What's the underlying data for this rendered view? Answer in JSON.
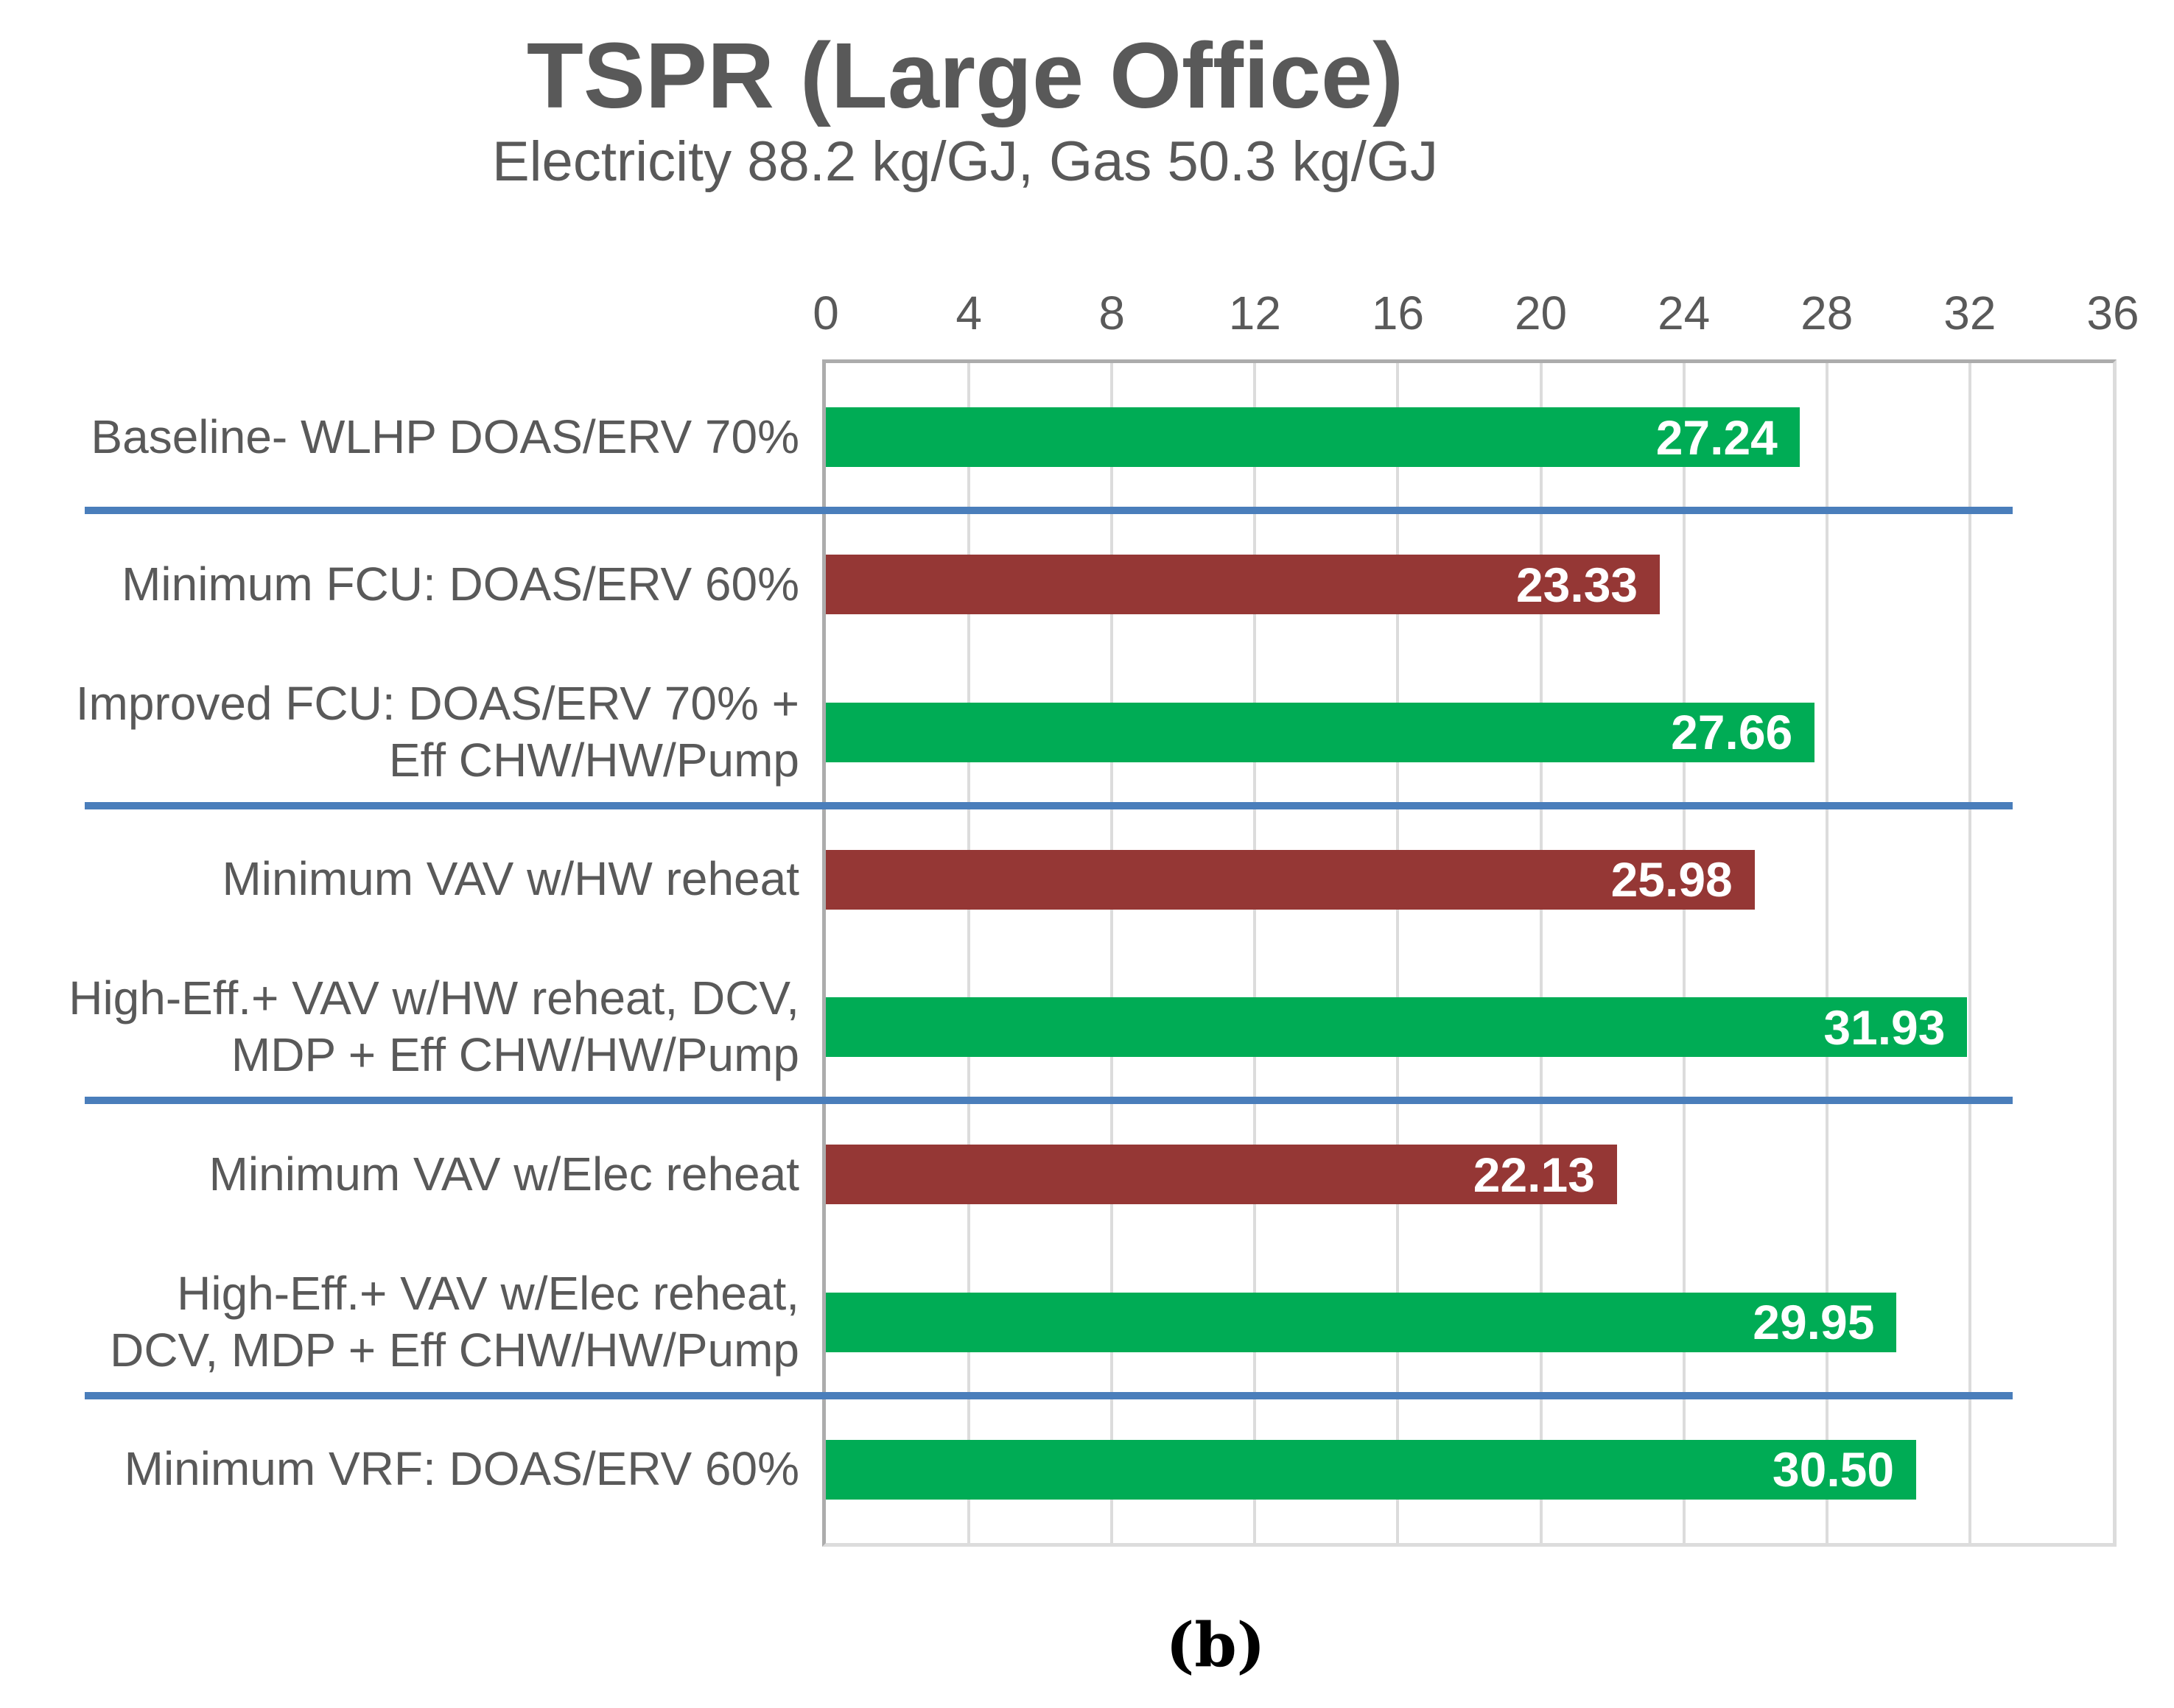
{
  "page": {
    "caption": "(b)"
  },
  "chart_data": {
    "type": "bar",
    "orientation": "horizontal",
    "title": "TSPR (Large Office)",
    "subtitle": "Electricity 88.2 kg/GJ, Gas 50.3 kg/GJ",
    "xlabel": "",
    "ylabel": "",
    "xlim": [
      0,
      36
    ],
    "x_ticks": [
      0,
      4,
      8,
      12,
      16,
      20,
      24,
      28,
      32,
      36
    ],
    "grid": "vertical gridlines every 4 units, light gray",
    "legend": "none",
    "axis_position": "top",
    "categories": [
      "Baseline- WLHP DOAS/ERV 70%",
      "Minimum FCU: DOAS/ERV 60%",
      "Improved FCU: DOAS/ERV 70% +\nEff CHW/HW/Pump",
      "Minimum VAV w/HW reheat",
      "High-Eff.+ VAV w/HW reheat, DCV,\nMDP + Eff CHW/HW/Pump",
      "Minimum VAV w/Elec reheat",
      "High-Eff.+ VAV w/Elec reheat,\nDCV, MDP + Eff CHW/HW/Pump",
      "Minimum  VRF: DOAS/ERV 60%"
    ],
    "values": [
      27.24,
      23.33,
      27.66,
      25.98,
      31.93,
      22.13,
      29.95,
      30.5
    ],
    "data_labels": [
      "27.24",
      "23.33",
      "27.66",
      "25.98",
      "31.93",
      "22.13",
      "29.95",
      "30.50"
    ],
    "bar_color_keys": [
      "green",
      "dark_red",
      "green",
      "dark_red",
      "green",
      "dark_red",
      "green",
      "green"
    ],
    "group_dividers_after_row_indexes": [
      0,
      2,
      4,
      6
    ],
    "colors": {
      "green": "#00AC55",
      "dark_red": "#953735",
      "divider_blue": "#4A7EBB",
      "text_gray": "#595959",
      "gridline_gray": "#DCDCDC",
      "data_label_white": "#FFFFFF"
    }
  }
}
